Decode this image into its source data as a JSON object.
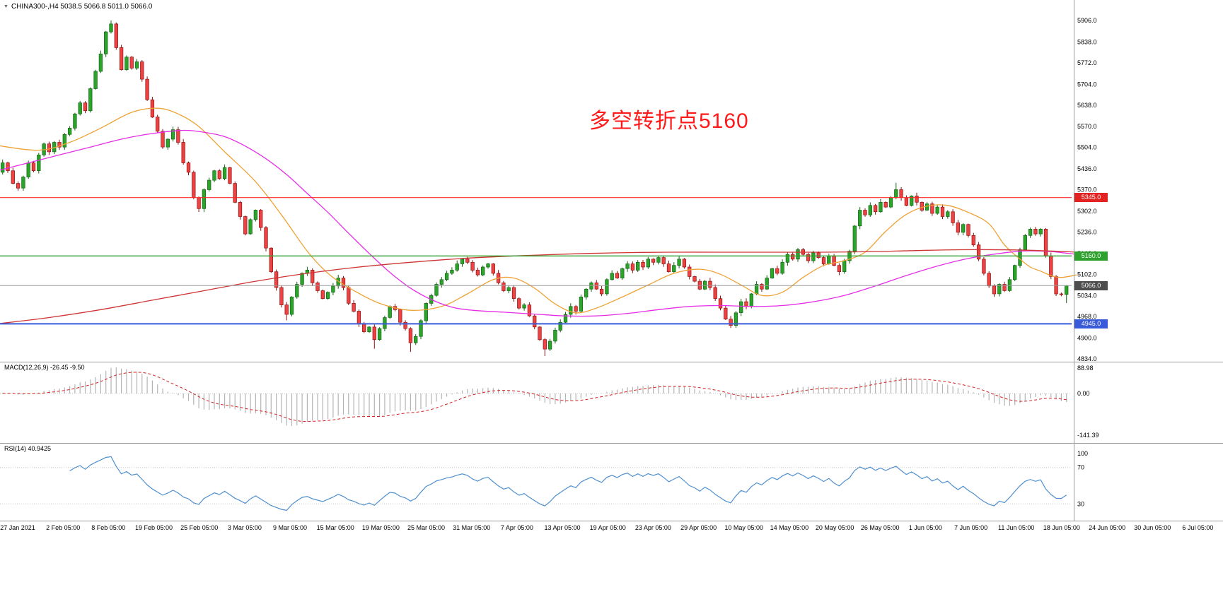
{
  "header": {
    "marker": "▼",
    "symbol_info": "CHINA300-,H4  5038.5 5066.8 5011.0 5066.0"
  },
  "annotation": {
    "text": "多空转折点5160",
    "color": "#ff1a1a"
  },
  "chart_data": {
    "type": "candlestick",
    "symbol": "CHINA300-",
    "timeframe": "H4",
    "ohlc": {
      "open": "5038.5",
      "high": "5066.8",
      "low": "5011.0",
      "close": "5066.0"
    },
    "closes": [
      5425,
      5455,
      5430,
      5390,
      5375,
      5410,
      5455,
      5430,
      5480,
      5515,
      5490,
      5520,
      5505,
      5545,
      5565,
      5610,
      5645,
      5620,
      5690,
      5745,
      5800,
      5870,
      5895,
      5820,
      5750,
      5790,
      5755,
      5775,
      5720,
      5655,
      5600,
      5555,
      5505,
      5530,
      5560,
      5520,
      5455,
      5425,
      5345,
      5310,
      5370,
      5400,
      5430,
      5405,
      5440,
      5390,
      5330,
      5285,
      5230,
      5275,
      5305,
      5250,
      5185,
      5110,
      5060,
      5005,
      4975,
      5030,
      5070,
      5105,
      5115,
      5075,
      5050,
      5025,
      5045,
      5065,
      5090,
      5060,
      5010,
      4985,
      4945,
      4920,
      4935,
      4895,
      4930,
      4965,
      5000,
      4990,
      4950,
      4930,
      4885,
      4905,
      4955,
      5010,
      5035,
      5070,
      5085,
      5105,
      5115,
      5135,
      5150,
      5140,
      5115,
      5100,
      5125,
      5135,
      5105,
      5075,
      5050,
      5060,
      5025,
      4995,
      5005,
      4970,
      4935,
      4895,
      4865,
      4890,
      4925,
      4950,
      4975,
      5000,
      4985,
      5030,
      5055,
      5075,
      5055,
      5040,
      5085,
      5105,
      5090,
      5120,
      5135,
      5115,
      5140,
      5125,
      5150,
      5140,
      5155,
      5135,
      5110,
      5130,
      5150,
      5125,
      5095,
      5080,
      5055,
      5080,
      5060,
      5025,
      4995,
      4960,
      4940,
      4980,
      5015,
      5000,
      5040,
      5070,
      5055,
      5090,
      5120,
      5105,
      5140,
      5165,
      5150,
      5180,
      5165,
      5145,
      5170,
      5155,
      5135,
      5160,
      5130,
      5110,
      5145,
      5175,
      5255,
      5305,
      5290,
      5320,
      5300,
      5330,
      5315,
      5345,
      5370,
      5345,
      5320,
      5350,
      5330,
      5305,
      5325,
      5295,
      5315,
      5285,
      5300,
      5265,
      5235,
      5260,
      5225,
      5195,
      5150,
      5105,
      5065,
      5040,
      5070,
      5050,
      5085,
      5130,
      5180,
      5225,
      5245,
      5230,
      5245,
      5160,
      5095,
      5040,
      5038,
      5066
    ],
    "extremes": {
      "22": {
        "high": 5906
      },
      "56": {
        "low": 4956
      },
      "73": {
        "low": 4866
      },
      "80": {
        "low": 4856
      },
      "106": {
        "low": 4843
      },
      "142": {
        "low": 4932
      },
      "174": {
        "high": 5392
      },
      "207": {
        "high": 5067,
        "low": 5011
      }
    },
    "candle_colors": {
      "up_fill": "#2aa52a",
      "up_stroke": "#156415",
      "down_fill": "#ef4242",
      "down_stroke": "#8f1212"
    },
    "price_axis": {
      "max": 5906,
      "min": 4834,
      "ticks": [
        5906,
        5838,
        5772,
        5704,
        5638,
        5570,
        5504,
        5436,
        5370,
        5302,
        5236,
        5168,
        5102,
        5034,
        4968,
        4900,
        4834
      ]
    },
    "hlines": [
      {
        "price": 5345,
        "label": "5345.0",
        "color": "#ff2a2a",
        "badge_bg": "#e32222",
        "width": 1.2
      },
      {
        "price": 5160,
        "label": "5160.0",
        "color": "#2fa12f",
        "badge_bg": "#2fa12f",
        "width": 1.4
      },
      {
        "price": 5066,
        "label": "5066.0",
        "color": "#9a9a9a",
        "badge_bg": "#4d4d4d",
        "width": 1
      },
      {
        "price": 4945,
        "label": "4945.0",
        "color": "#3a5bd9",
        "badge_bg": "#3a5bd9",
        "width": 2
      }
    ],
    "ma_lines": [
      {
        "name": "ma-fast-orange",
        "color": "#efa235",
        "anchors": [
          [
            0,
            5510
          ],
          [
            8,
            5495
          ],
          [
            14,
            5520
          ],
          [
            20,
            5565
          ],
          [
            26,
            5615
          ],
          [
            31,
            5628
          ],
          [
            35,
            5610
          ],
          [
            39,
            5570
          ],
          [
            44,
            5490
          ],
          [
            50,
            5395
          ],
          [
            55,
            5290
          ],
          [
            60,
            5175
          ],
          [
            64,
            5105
          ],
          [
            68,
            5060
          ],
          [
            74,
            5010
          ],
          [
            80,
            4988
          ],
          [
            86,
            5000
          ],
          [
            91,
            5040
          ],
          [
            96,
            5085
          ],
          [
            100,
            5090
          ],
          [
            104,
            5058
          ],
          [
            108,
            5008
          ],
          [
            112,
            4980
          ],
          [
            116,
            4995
          ],
          [
            121,
            5030
          ],
          [
            126,
            5068
          ],
          [
            131,
            5105
          ],
          [
            136,
            5118
          ],
          [
            140,
            5102
          ],
          [
            144,
            5068
          ],
          [
            148,
            5035
          ],
          [
            152,
            5045
          ],
          [
            156,
            5092
          ],
          [
            160,
            5130
          ],
          [
            164,
            5145
          ],
          [
            168,
            5172
          ],
          [
            172,
            5238
          ],
          [
            176,
            5292
          ],
          [
            180,
            5318
          ],
          [
            184,
            5320
          ],
          [
            188,
            5298
          ],
          [
            192,
            5262
          ],
          [
            195,
            5195
          ],
          [
            198,
            5150
          ],
          [
            200,
            5125
          ],
          [
            202,
            5112
          ],
          [
            204,
            5098
          ],
          [
            206,
            5092
          ],
          [
            209,
            5100
          ]
        ]
      },
      {
        "name": "ma-mid-magenta",
        "color": "#e52ee5",
        "anchors": [
          [
            0,
            5430
          ],
          [
            6,
            5455
          ],
          [
            12,
            5480
          ],
          [
            18,
            5505
          ],
          [
            24,
            5530
          ],
          [
            30,
            5548
          ],
          [
            36,
            5558
          ],
          [
            40,
            5552
          ],
          [
            44,
            5538
          ],
          [
            48,
            5508
          ],
          [
            52,
            5468
          ],
          [
            56,
            5418
          ],
          [
            60,
            5358
          ],
          [
            64,
            5298
          ],
          [
            68,
            5232
          ],
          [
            72,
            5168
          ],
          [
            76,
            5108
          ],
          [
            80,
            5058
          ],
          [
            84,
            5022
          ],
          [
            88,
            4998
          ],
          [
            92,
            4988
          ],
          [
            98,
            4982
          ],
          [
            104,
            4976
          ],
          [
            110,
            4970
          ],
          [
            116,
            4970
          ],
          [
            122,
            4978
          ],
          [
            128,
            4990
          ],
          [
            134,
            5000
          ],
          [
            140,
            5003
          ],
          [
            146,
            5000
          ],
          [
            152,
            5003
          ],
          [
            158,
            5015
          ],
          [
            164,
            5035
          ],
          [
            170,
            5065
          ],
          [
            176,
            5098
          ],
          [
            182,
            5128
          ],
          [
            188,
            5152
          ],
          [
            194,
            5168
          ],
          [
            199,
            5176
          ],
          [
            204,
            5174
          ],
          [
            209,
            5165
          ]
        ]
      },
      {
        "name": "ma-slow-red",
        "color": "#cf3434",
        "anchors": [
          [
            0,
            4945
          ],
          [
            10,
            4965
          ],
          [
            20,
            4990
          ],
          [
            30,
            5020
          ],
          [
            40,
            5050
          ],
          [
            50,
            5080
          ],
          [
            60,
            5105
          ],
          [
            70,
            5125
          ],
          [
            80,
            5140
          ],
          [
            90,
            5152
          ],
          [
            100,
            5160
          ],
          [
            110,
            5166
          ],
          [
            120,
            5170
          ],
          [
            130,
            5172
          ],
          [
            140,
            5172
          ],
          [
            150,
            5172
          ],
          [
            160,
            5172
          ],
          [
            170,
            5174
          ],
          [
            180,
            5178
          ],
          [
            190,
            5180
          ],
          [
            200,
            5178
          ],
          [
            209,
            5172
          ]
        ]
      }
    ],
    "macd": {
      "label": "MACD(12,26,9) -26.45 -9.50",
      "fast": 12,
      "slow": 26,
      "signal": 9,
      "axis": [
        "88.98",
        "0.00",
        "-141.39"
      ],
      "axis_values": [
        88.98,
        0,
        -141.39
      ],
      "hist_color": "#b4b4b4",
      "signal_color": "#d02020"
    },
    "rsi": {
      "label": "RSI(14) 40.9425",
      "period": 14,
      "axis": [
        "100",
        "70",
        "30"
      ],
      "levels": [
        70,
        30
      ],
      "color": "#4f8fce"
    },
    "time_axis": {
      "labels": [
        "27 Jan 2021",
        "2 Feb 05:00",
        "8 Feb 05:00",
        "19 Feb 05:00",
        "25 Feb 05:00",
        "3 Mar 05:00",
        "9 Mar 05:00",
        "15 Mar 05:00",
        "19 Mar 05:00",
        "25 Mar 05:00",
        "31 Mar 05:00",
        "7 Apr 05:00",
        "13 Apr 05:00",
        "19 Apr 05:00",
        "23 Apr 05:00",
        "29 Apr 05:00",
        "10 May 05:00",
        "14 May 05:00",
        "20 May 05:00",
        "26 May 05:00",
        "1 Jun 05:00",
        "7 Jun 05:00",
        "11 Jun 05:00",
        "18 Jun 05:00",
        "24 Jun 05:00",
        "30 Jun 05:00",
        "6 Jul 05:00"
      ]
    }
  }
}
